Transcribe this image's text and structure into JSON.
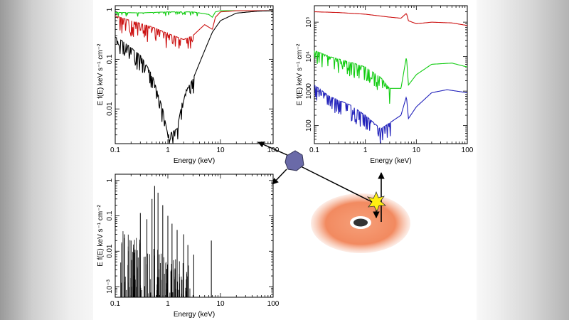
{
  "colors": {
    "red": "#cc1111",
    "green": "#11cc11",
    "blue": "#2222bb",
    "black": "#000000",
    "disk": "#f28a60",
    "star": "#ffee11",
    "satellite": "#6a6aa8"
  },
  "icons": {
    "satellite": "satellite-icon",
    "flare": "flare-star-icon",
    "disk": "accretion-disk-illustration"
  },
  "chart_data": [
    {
      "name": "absorbed-spectrum",
      "type": "line",
      "xlabel": "Energy (keV)",
      "ylabel": "E f(E) keV s⁻¹ cm⁻²",
      "xscale": "log",
      "yscale": "log",
      "xlim": [
        0.1,
        100
      ],
      "ylim": [
        0.002,
        1.2
      ],
      "xticks": [
        {
          "v": 0.1,
          "t": "0.1"
        },
        {
          "v": 1,
          "t": "1"
        },
        {
          "v": 10,
          "t": "10"
        },
        {
          "v": 100,
          "t": "100"
        }
      ],
      "yticks": [
        {
          "v": 1,
          "t": "1"
        },
        {
          "v": 0.1,
          "t": "0.1"
        },
        {
          "v": 0.01,
          "t": "0.01"
        }
      ],
      "series": [
        {
          "name": "green",
          "color": "#11cc11",
          "x": [
            0.1,
            0.3,
            1,
            3,
            6,
            7,
            8,
            10,
            30,
            100
          ],
          "y": [
            0.88,
            0.86,
            0.9,
            0.9,
            0.8,
            0.7,
            0.9,
            0.95,
            0.95,
            0.95
          ]
        },
        {
          "name": "red",
          "color": "#cc1111",
          "x": [
            0.1,
            0.2,
            0.5,
            1,
            2,
            3,
            5,
            7,
            8,
            10,
            20,
            50,
            100
          ],
          "y": [
            0.75,
            0.6,
            0.45,
            0.33,
            0.25,
            0.3,
            0.5,
            0.4,
            0.7,
            0.9,
            0.95,
            0.95,
            0.95
          ]
        },
        {
          "name": "black",
          "color": "#000000",
          "x": [
            0.1,
            0.15,
            0.3,
            0.5,
            0.8,
            1,
            1.5,
            2,
            3,
            5,
            7,
            10,
            20,
            50,
            100
          ],
          "y": [
            0.28,
            0.22,
            0.12,
            0.05,
            0.01,
            0.003,
            0.004,
            0.02,
            0.04,
            0.15,
            0.35,
            0.6,
            0.85,
            0.93,
            0.95
          ]
        }
      ]
    },
    {
      "name": "continuum-spectrum",
      "type": "line",
      "xlabel": "Energy (keV)",
      "ylabel": "E f(E) keV s⁻¹ cm⁻²",
      "xscale": "log",
      "yscale": "log",
      "xlim": [
        0.1,
        100
      ],
      "ylim": [
        30,
        300000
      ],
      "xticks": [
        {
          "v": 0.1,
          "t": "0.1"
        },
        {
          "v": 1,
          "t": "1"
        },
        {
          "v": 10,
          "t": "10"
        },
        {
          "v": 100,
          "t": "100"
        }
      ],
      "yticks": [
        {
          "v": 100000,
          "t": "10⁵"
        },
        {
          "v": 10000,
          "t": "10⁴"
        },
        {
          "v": 1000,
          "t": "1000"
        },
        {
          "v": 100,
          "t": "100"
        }
      ],
      "series": [
        {
          "name": "red",
          "color": "#cc1111",
          "x": [
            0.1,
            0.3,
            1,
            3,
            5,
            6.4,
            7,
            10,
            20,
            50,
            100
          ],
          "y": [
            200000,
            190000,
            170000,
            140000,
            130000,
            180000,
            110000,
            90000,
            100000,
            95000,
            80000
          ]
        },
        {
          "name": "green",
          "color": "#11cc11",
          "x": [
            0.1,
            0.2,
            0.5,
            1,
            2,
            3,
            5,
            6.4,
            7,
            10,
            20,
            50,
            100
          ],
          "y": [
            15000,
            10000,
            7000,
            5000,
            2500,
            1200,
            1200,
            10000,
            1500,
            3000,
            6000,
            6500,
            5000
          ]
        },
        {
          "name": "blue",
          "color": "#2222bb",
          "x": [
            0.1,
            0.2,
            0.5,
            1,
            2,
            3,
            5,
            6.4,
            7,
            10,
            20,
            40,
            100
          ],
          "y": [
            1500,
            700,
            400,
            200,
            80,
            120,
            200,
            700,
            160,
            350,
            900,
            1100,
            900
          ]
        }
      ]
    },
    {
      "name": "line-emission-spectrum",
      "type": "line",
      "xlabel": "Energy (keV)",
      "ylabel": "E f(E) keV s⁻¹ cm⁻²",
      "xscale": "log",
      "yscale": "log",
      "xlim": [
        0.1,
        100
      ],
      "ylim": [
        0.0005,
        1.5
      ],
      "xticks": [
        {
          "v": 0.1,
          "t": "0.1"
        },
        {
          "v": 1,
          "t": "1"
        },
        {
          "v": 10,
          "t": "10"
        },
        {
          "v": 100,
          "t": "100"
        }
      ],
      "yticks": [
        {
          "v": 1,
          "t": "1"
        },
        {
          "v": 0.1,
          "t": "0.1"
        },
        {
          "v": 0.01,
          "t": "0.01"
        },
        {
          "v": 0.001,
          "t": "10⁻³"
        }
      ],
      "series": [
        {
          "name": "lines",
          "color": "#000000",
          "x": [
            0.15,
            0.2,
            0.3,
            0.4,
            0.5,
            0.56,
            0.65,
            0.8,
            1.0,
            1.2,
            1.5,
            2.0,
            2.4,
            3.1,
            6.7
          ],
          "y": [
            0.03,
            0.02,
            0.12,
            0.08,
            0.3,
            0.7,
            0.45,
            0.2,
            0.1,
            0.06,
            0.04,
            0.03,
            0.015,
            0.008,
            0.02
          ]
        }
      ]
    }
  ]
}
